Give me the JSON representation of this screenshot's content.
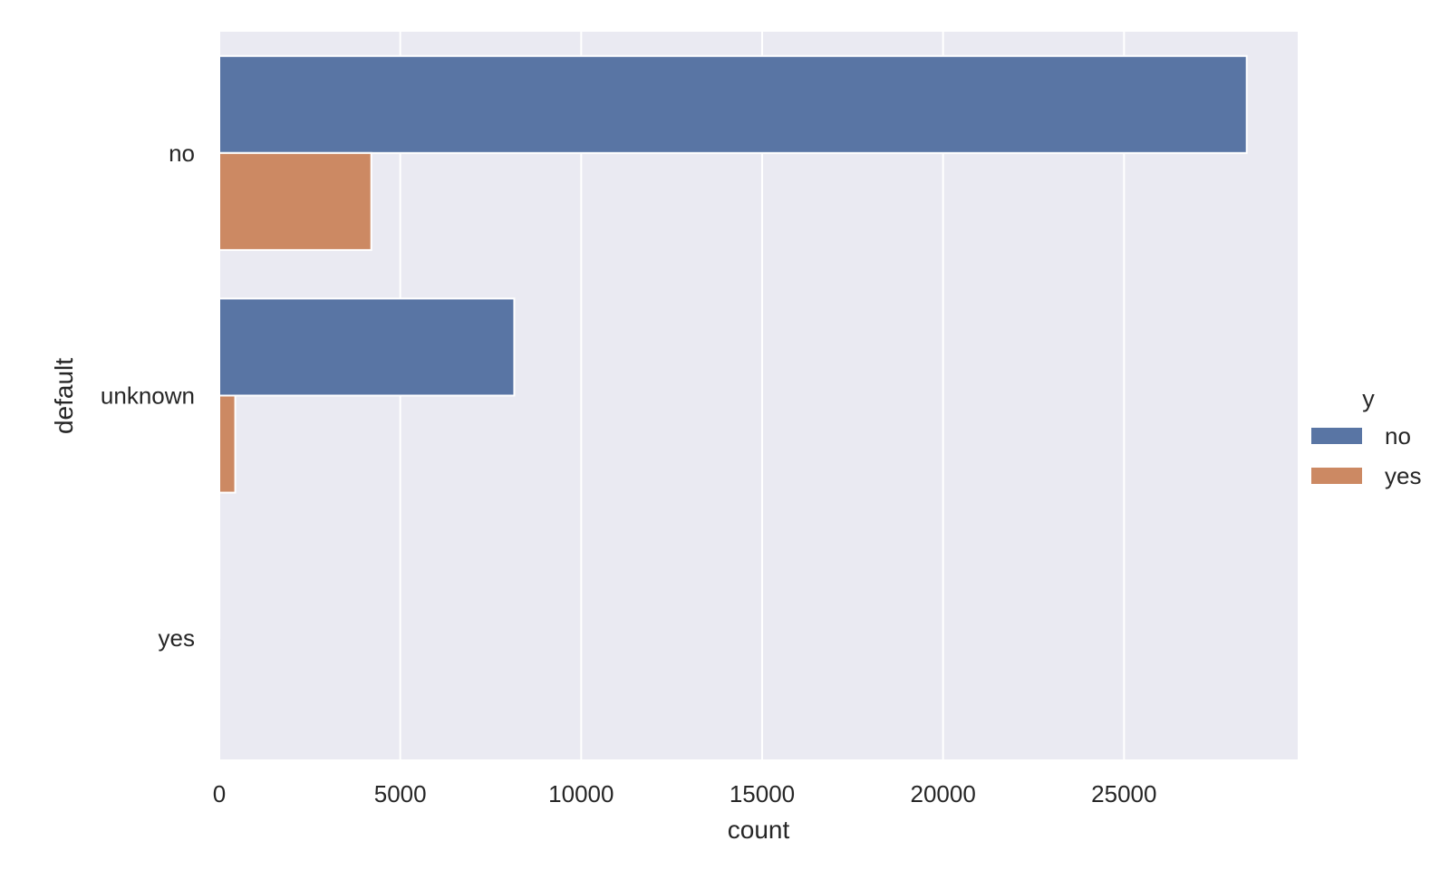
{
  "chart_data": {
    "type": "bar",
    "orientation": "horizontal",
    "categories": [
      "no",
      "unknown",
      "yes"
    ],
    "series": [
      {
        "name": "no",
        "color": "#5975a4",
        "values": [
          28390,
          8150,
          3
        ]
      },
      {
        "name": "yes",
        "color": "#cc8963",
        "values": [
          4200,
          440,
          0
        ]
      }
    ],
    "xlabel": "count",
    "ylabel": "default",
    "xlim": [
      0,
      29800
    ],
    "xticks": [
      0,
      5000,
      10000,
      15000,
      20000,
      25000
    ],
    "xtick_labels": [
      "0",
      "5000",
      "10000",
      "15000",
      "20000",
      "25000"
    ],
    "grid": true,
    "background": "#eaeaf2",
    "legend": {
      "title": "y",
      "entries": [
        "no",
        "yes"
      ],
      "placement": "right"
    }
  }
}
